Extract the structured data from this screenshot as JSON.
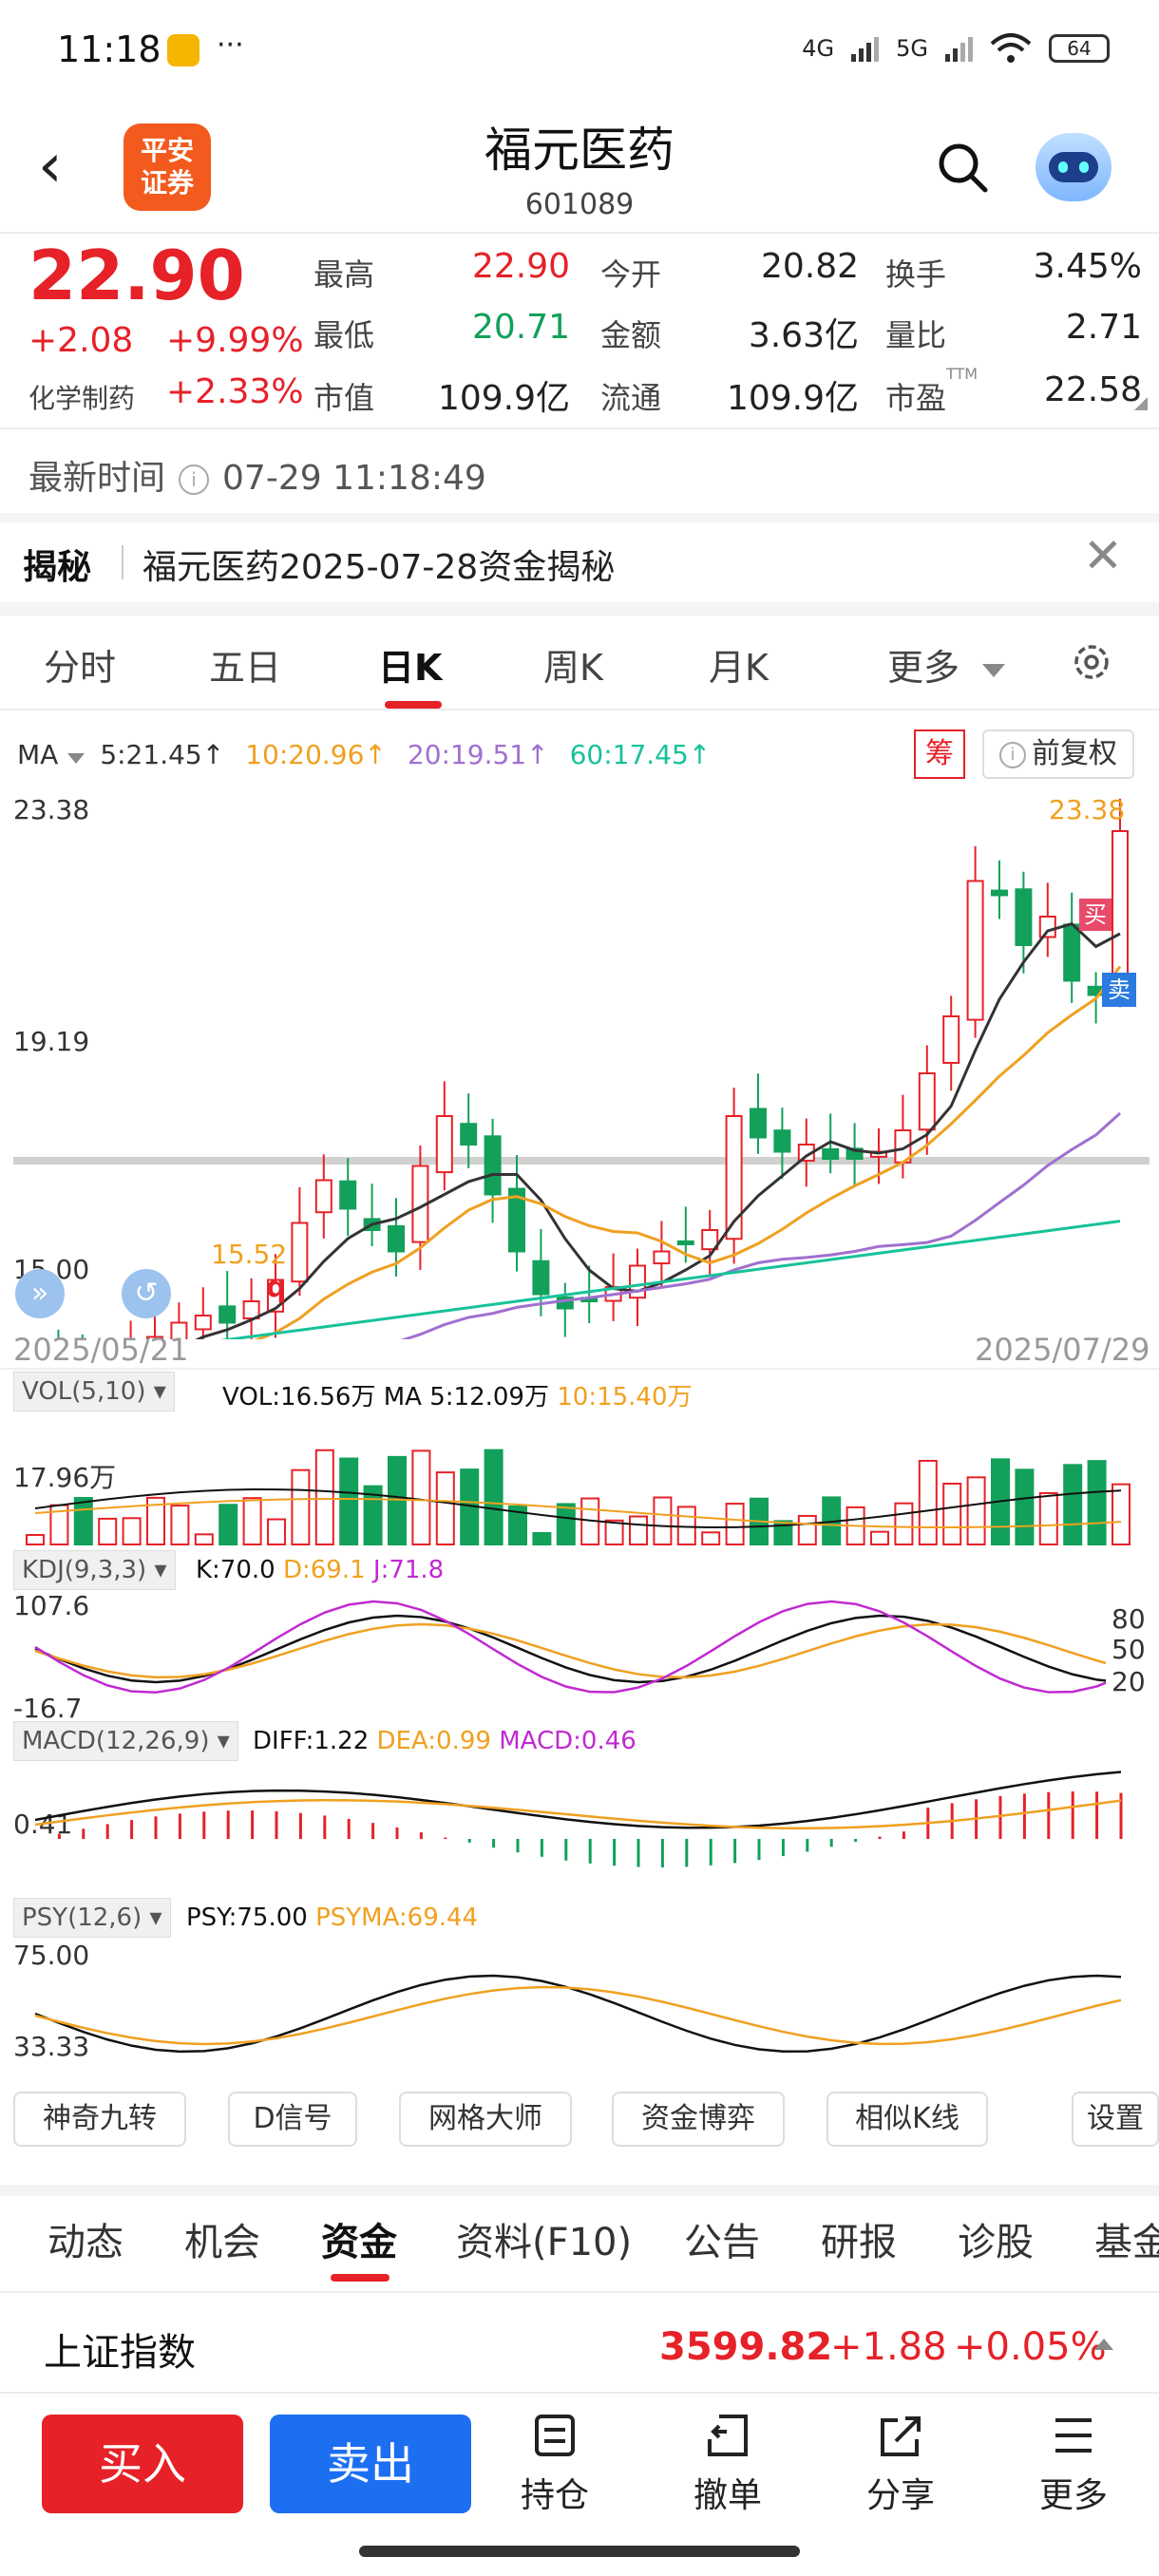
{
  "status": {
    "time": "11:18",
    "dots": "···",
    "net1": "4G",
    "net2": "5G",
    "battery": "64"
  },
  "header": {
    "title": "福元医药",
    "code": "601089",
    "logo_line1": "平安",
    "logo_line2": "证券",
    "back": "‹"
  },
  "quote": {
    "price": "22.90",
    "change": "+2.08",
    "change_pct": "+9.99%",
    "industry": "化学制药",
    "industry_pct": "+2.33%",
    "fields": [
      {
        "label": "最高",
        "value": "22.90",
        "color": "red"
      },
      {
        "label": "今开",
        "value": "20.82",
        "color": "black"
      },
      {
        "label": "换手",
        "value": "3.45%",
        "color": "black"
      },
      {
        "label": "最低",
        "value": "20.71",
        "color": "green"
      },
      {
        "label": "金额",
        "value": "3.63亿",
        "color": "black"
      },
      {
        "label": "量比",
        "value": "2.71",
        "color": "black"
      },
      {
        "label": "市值",
        "value": "109.9亿",
        "color": "black"
      },
      {
        "label": "流通",
        "value": "109.9亿",
        "color": "black"
      },
      {
        "label": "市盈",
        "value": "22.58",
        "color": "black"
      }
    ],
    "ttm": "TTM"
  },
  "latest": {
    "label": "最新时间",
    "time": "07-29 11:18:49"
  },
  "reveal": {
    "tag": "揭秘",
    "text": "福元医药2025-07-28资金揭秘"
  },
  "chart_tabs": [
    "分时",
    "五日",
    "日K",
    "周K",
    "月K",
    "更多"
  ],
  "ma": {
    "label": "MA",
    "items": [
      {
        "text": "5:21.45↑",
        "color": "#333333"
      },
      {
        "text": "10:20.96↑",
        "color": "#f0a020"
      },
      {
        "text": "20:19.51↑",
        "color": "#a070d0"
      },
      {
        "text": "60:17.45↑",
        "color": "#17c29a"
      }
    ],
    "chou": "筹",
    "fuquan": "前复权"
  },
  "kchart": {
    "y_top": "23.38",
    "y_mid": "19.19",
    "y_low": "15.00",
    "hi_label": "23.38",
    "lo_label": "15.52",
    "q_mark": "q",
    "buy_mark": "买",
    "sell_mark": "卖",
    "date_start": "2025/05/21",
    "date_end": "2025/07/29"
  },
  "vol": {
    "box": "VOL(5,10)",
    "main": "VOL:16.56万",
    "ma5": "MA 5:12.09万",
    "ma10": "10:15.40万",
    "ylab": "17.96万"
  },
  "kdj": {
    "box": "KDJ(9,3,3)",
    "k": "K:70.0",
    "d": "D:69.1",
    "j": "J:71.8",
    "ytop": "107.6",
    "ybot": "-16.7",
    "r80": "80",
    "r50": "50",
    "r20": "20"
  },
  "macd": {
    "box": "MACD(12,26,9)",
    "diff": "DIFF:1.22",
    "dea": "DEA:0.99",
    "macd": "MACD:0.46",
    "ylab": "0.41"
  },
  "psy": {
    "box": "PSY(12,6)",
    "psy": "PSY:75.00",
    "psyma": "PSYMA:69.44",
    "ytop": "75.00",
    "ybot": "33.33"
  },
  "tools": [
    "神奇九转",
    "D信号",
    "网格大师",
    "资金博弈",
    "相似K线",
    "设置"
  ],
  "bottom_tabs": [
    "动态",
    "机会",
    "资金",
    "资料(F10)",
    "公告",
    "研报",
    "诊股",
    "基金"
  ],
  "index": {
    "name": "上证指数",
    "value": "3599.82",
    "change": "+1.88",
    "pct": "+0.05%"
  },
  "actions": {
    "buy": "买入",
    "sell": "卖出",
    "items": [
      "持仓",
      "撤单",
      "分享",
      "更多"
    ]
  }
}
